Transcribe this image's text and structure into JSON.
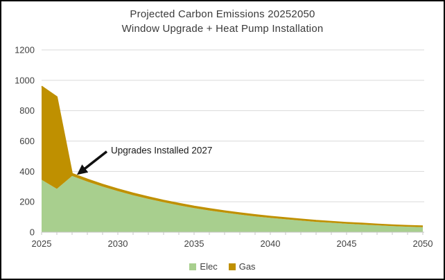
{
  "window": {
    "background": "#ffffff",
    "border_color": "#000000"
  },
  "title": {
    "line1": "Projected Carbon Emissions 20252050",
    "line2": "Window Upgrade + Heat Pump Installation"
  },
  "annotation": {
    "text": "Upgrades Installed 2027",
    "target_year": 2027,
    "target_value": 385,
    "arrow_color": "#111111"
  },
  "chart_data": {
    "type": "area",
    "stacked": true,
    "title": "Projected Carbon Emissions 20252050 — Window Upgrade + Heat Pump Installation",
    "xlabel": "",
    "ylabel": "",
    "x": [
      2025,
      2026,
      2027,
      2028,
      2029,
      2030,
      2031,
      2032,
      2033,
      2034,
      2035,
      2036,
      2037,
      2038,
      2039,
      2040,
      2041,
      2042,
      2043,
      2044,
      2045,
      2046,
      2047,
      2048,
      2049,
      2050
    ],
    "series": [
      {
        "name": "Elec",
        "color": "#A8CF8E",
        "values": [
          345,
          285,
          370,
          333,
          300,
          270,
          243,
          219,
          197,
          177,
          159,
          143,
          129,
          116,
          104,
          94,
          85,
          76,
          68,
          62,
          55,
          50,
          45,
          40,
          36,
          33
        ]
      },
      {
        "name": "Gas",
        "color": "#BF9000",
        "values": [
          615,
          605,
          15,
          15,
          14,
          14,
          13,
          13,
          12,
          12,
          11,
          11,
          10,
          10,
          10,
          9,
          9,
          9,
          8,
          8,
          8,
          8,
          7,
          7,
          7,
          7
        ]
      }
    ],
    "ylim": [
      0,
      1200
    ],
    "yticks": [
      0,
      200,
      400,
      600,
      800,
      1000,
      1200
    ],
    "xtick_labels": [
      "2025",
      "2030",
      "2035",
      "2040",
      "2045",
      "2050"
    ],
    "grid": "horizontal",
    "gridline_color": "#d9d9d9",
    "axis_line_color": "#c6c6c6",
    "axis_text_color": "#404040",
    "legend_position": "bottom"
  }
}
